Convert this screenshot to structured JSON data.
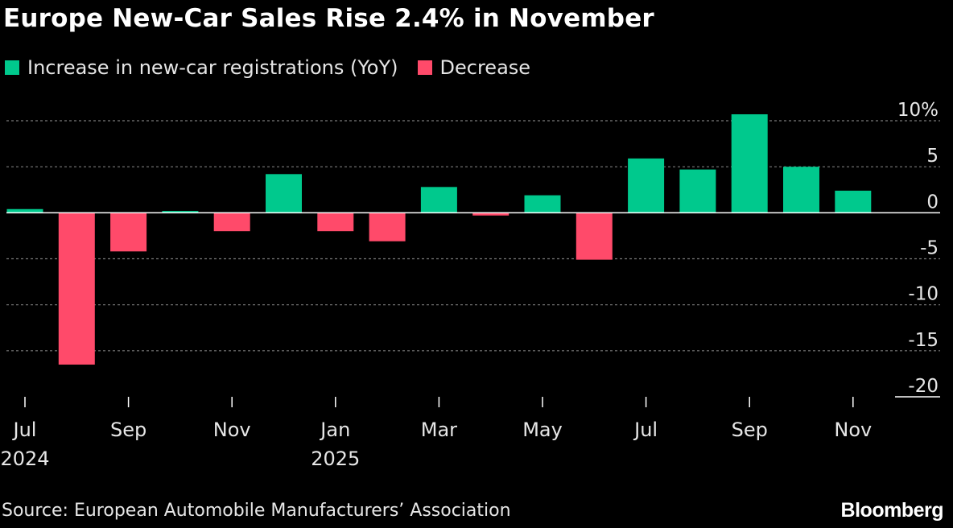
{
  "title": "Europe New-Car Sales Rise 2.4% in November",
  "legend": {
    "increase_label": "Increase in new-car registrations (YoY)",
    "decrease_label": "Decrease",
    "increase_color": "#00c98d",
    "decrease_color": "#ff4a6a"
  },
  "source": "Source: European Automobile Manufacturers’ Association",
  "brand": "Bloomberg",
  "chart_data": {
    "type": "bar",
    "categories": [
      "Jul 2024",
      "Aug 2024",
      "Sep 2024",
      "Oct 2024",
      "Nov 2024",
      "Dec 2024",
      "Jan 2025",
      "Feb 2025",
      "Mar 2025",
      "Apr 2025",
      "May 2025",
      "Jun 2025",
      "Jul 2025",
      "Aug 2025",
      "Sep 2025",
      "Oct 2025",
      "Nov 2025"
    ],
    "values": [
      0.4,
      -16.5,
      -4.2,
      0.2,
      -2.0,
      4.2,
      -2.0,
      -3.1,
      2.8,
      -0.3,
      1.9,
      -5.1,
      5.9,
      4.7,
      10.7,
      5.0,
      2.4
    ],
    "ylim": [
      -20,
      10
    ],
    "yticks": [
      10,
      5,
      0,
      -5,
      -10,
      -15,
      -20
    ],
    "ytick_labels": [
      "10%",
      "5",
      "0",
      "-5",
      "-10",
      "-15",
      "-20"
    ],
    "xticks": [
      {
        "index": 0,
        "label": "Jul",
        "sublabel": "2024"
      },
      {
        "index": 2,
        "label": "Sep",
        "sublabel": ""
      },
      {
        "index": 4,
        "label": "Nov",
        "sublabel": ""
      },
      {
        "index": 6,
        "label": "Jan",
        "sublabel": "2025"
      },
      {
        "index": 8,
        "label": "Mar",
        "sublabel": ""
      },
      {
        "index": 10,
        "label": "May",
        "sublabel": ""
      },
      {
        "index": 12,
        "label": "Jul",
        "sublabel": ""
      },
      {
        "index": 14,
        "label": "Sep",
        "sublabel": ""
      },
      {
        "index": 16,
        "label": "Nov",
        "sublabel": ""
      }
    ],
    "grid": true,
    "legend_position": "top-left",
    "y_axis_position": "right"
  }
}
